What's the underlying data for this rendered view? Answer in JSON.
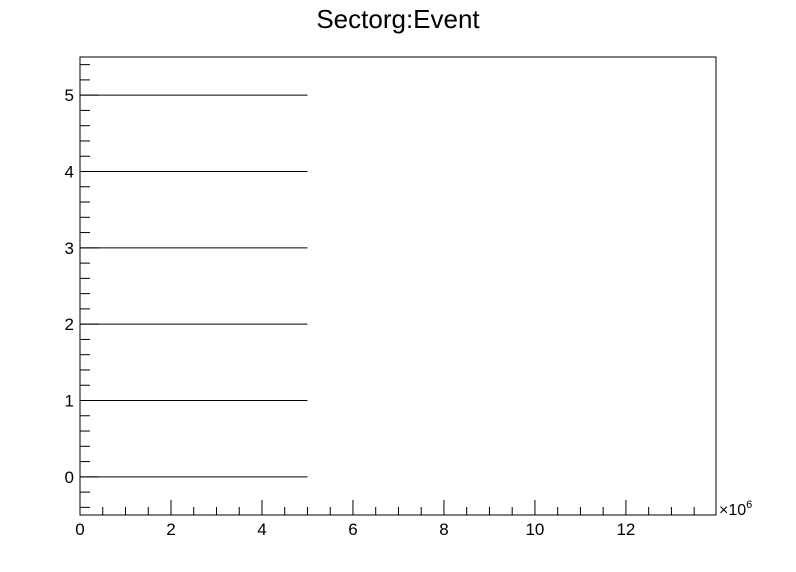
{
  "chart_data": {
    "type": "scatter",
    "title": "Sectorg:Event",
    "xlabel": "",
    "ylabel": "",
    "x_multiplier_label": "×10",
    "x_multiplier_exponent": "6",
    "xlim": [
      0,
      13.98
    ],
    "ylim": [
      -0.5,
      5.5
    ],
    "x_ticks": [
      0,
      2,
      4,
      6,
      8,
      10,
      12
    ],
    "x_tick_labels": [
      "0",
      "2",
      "4",
      "6",
      "8",
      "10",
      "12"
    ],
    "y_ticks": [
      0,
      1,
      2,
      3,
      4,
      5
    ],
    "y_tick_labels": [
      "0",
      "1",
      "2",
      "3",
      "4",
      "5"
    ],
    "grid": false,
    "legend": "none",
    "series": [
      {
        "segments": [
          {
            "y": 0,
            "x_start": 0,
            "x_end": 5.0
          },
          {
            "y": 1,
            "x_start": 0,
            "x_end": 5.0
          },
          {
            "y": 2,
            "x_start": 0,
            "x_end": 5.0
          },
          {
            "y": 3,
            "x_start": 0,
            "x_end": 5.0
          },
          {
            "y": 4,
            "x_start": 0,
            "x_end": 5.0
          },
          {
            "y": 5,
            "x_start": 0,
            "x_end": 5.0
          }
        ]
      }
    ]
  }
}
